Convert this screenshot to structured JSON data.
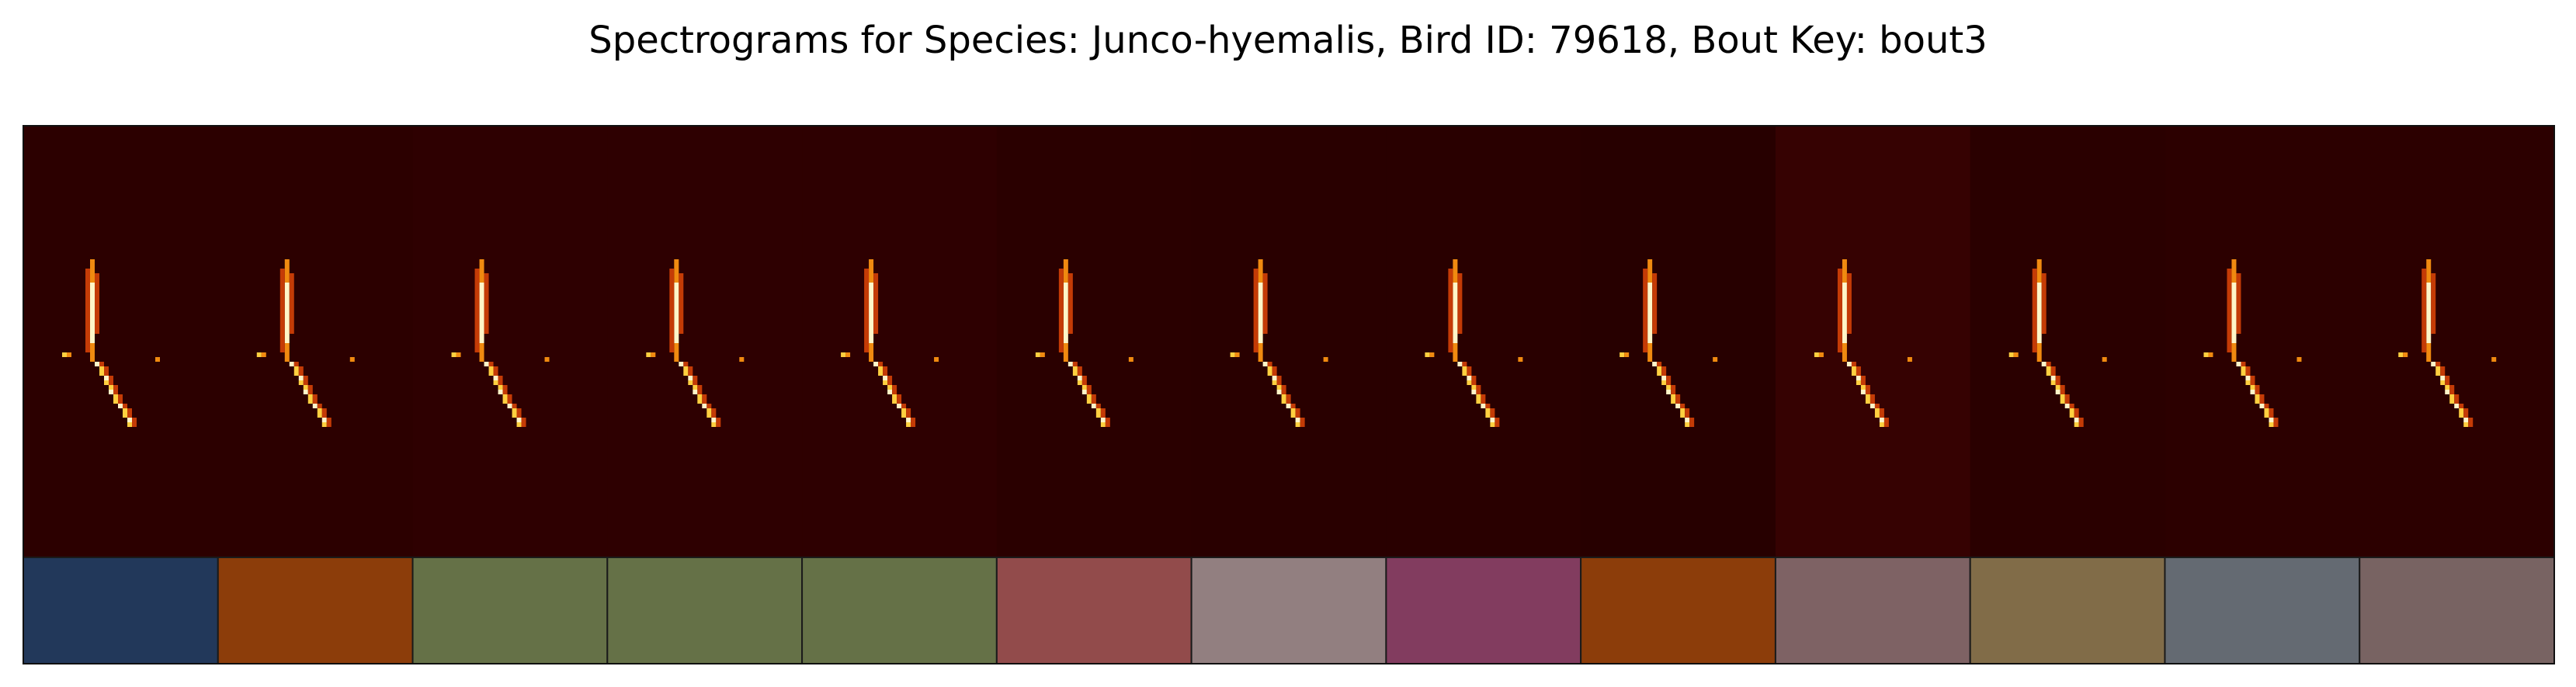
{
  "title": "Spectrograms for Species: Junco-hyemalis, Bird ID: 79618, Bout Key: bout3",
  "chart_data": {
    "type": "heatmap",
    "title": "Spectrograms for Species: Junco-hyemalis, Bird ID: 79618, Bout Key: bout3",
    "panel_count": 13,
    "grid": false,
    "panels": [
      {
        "background": "#2c0000",
        "label_color": "#22385a"
      },
      {
        "background": "#2c0000",
        "label_color": "#8c3d0a"
      },
      {
        "background": "#2e0001",
        "label_color": "#657147"
      },
      {
        "background": "#2e0001",
        "label_color": "#657147"
      },
      {
        "background": "#2e0001",
        "label_color": "#657147"
      },
      {
        "background": "#2a0000",
        "label_color": "#924b4b"
      },
      {
        "background": "#290000",
        "label_color": "#927f80"
      },
      {
        "background": "#290000",
        "label_color": "#823c5f"
      },
      {
        "background": "#270000",
        "label_color": "#8c3d0a"
      },
      {
        "background": "#360202",
        "label_color": "#7e6264"
      },
      {
        "background": "#2a0000",
        "label_color": "#816c48"
      },
      {
        "background": "#2c0000",
        "label_color": "#646a72"
      },
      {
        "background": "#2c0000",
        "label_color": "#786362"
      }
    ]
  }
}
